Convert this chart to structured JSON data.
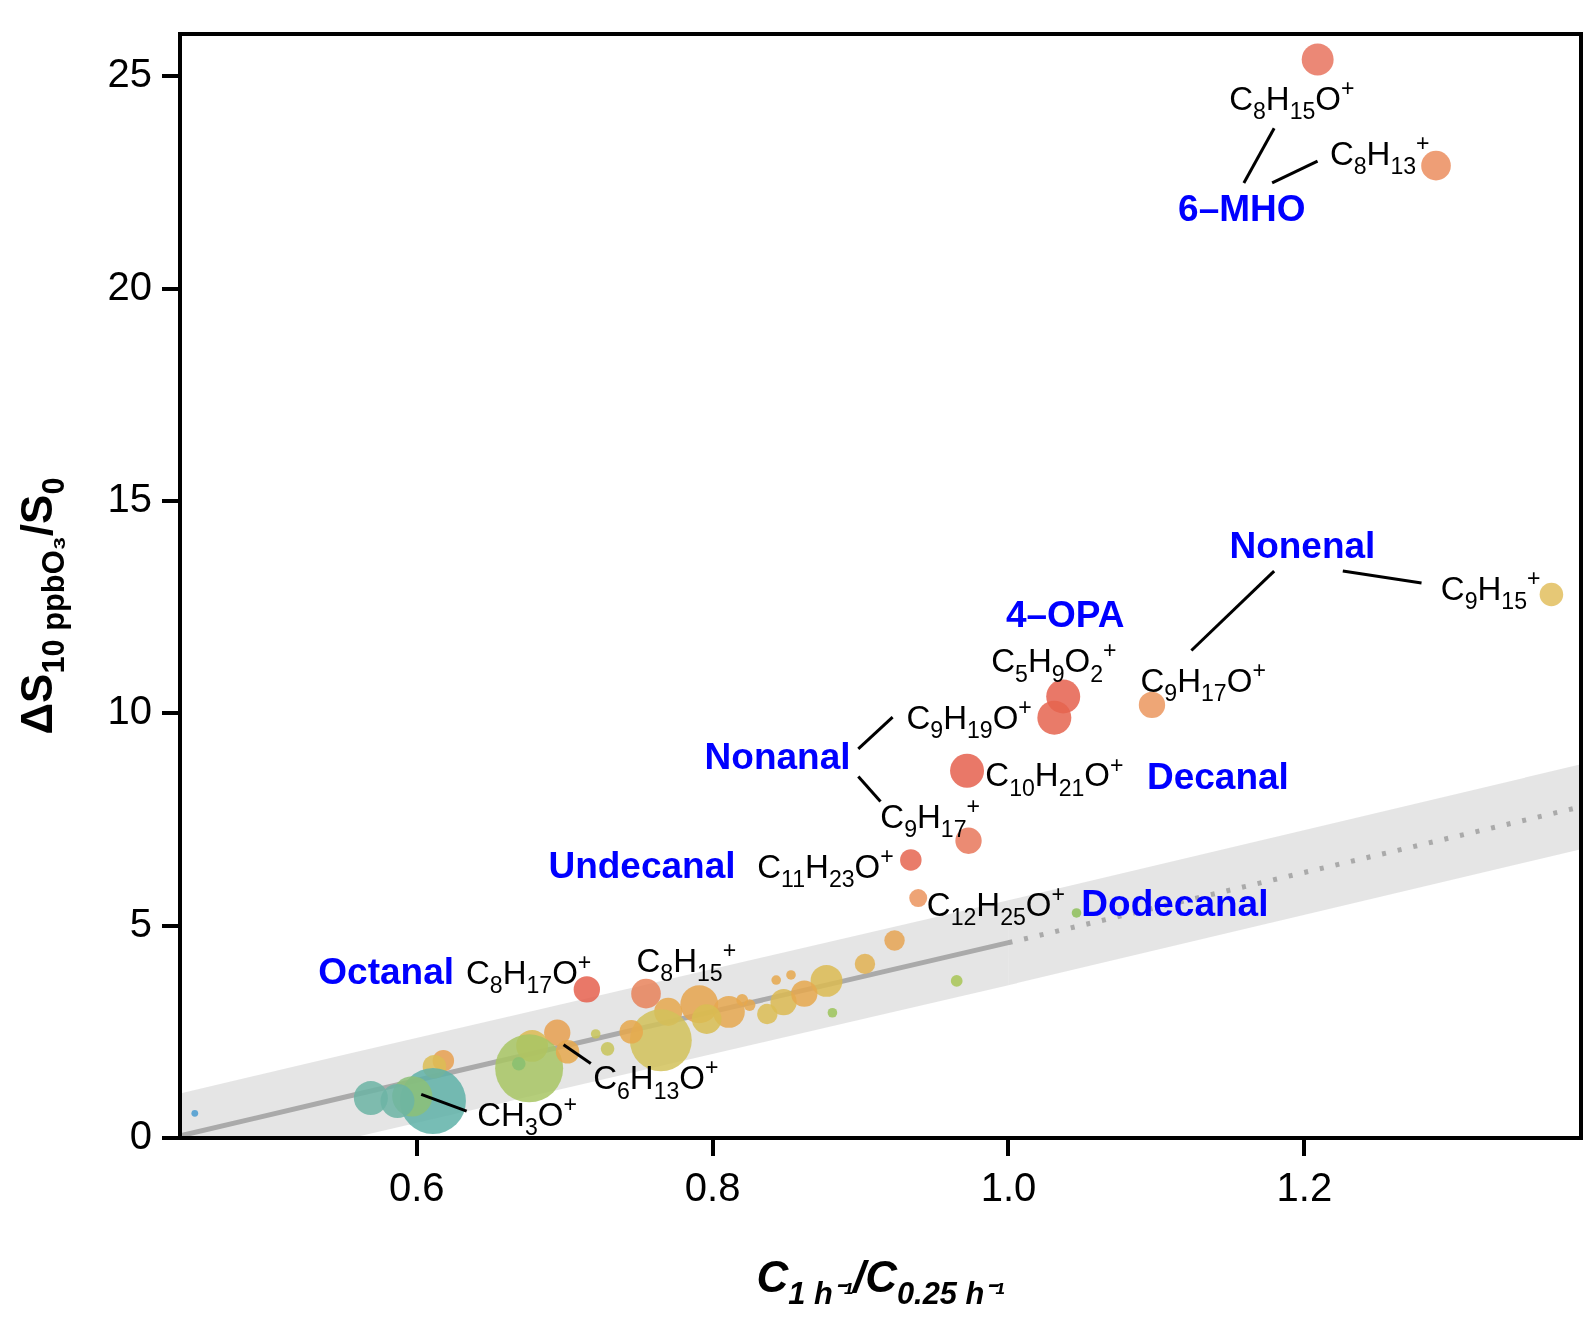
{
  "chart_data": {
    "type": "bubble",
    "xlabel": "C$_{1 h⁻¹}$/C$_{0.25 h⁻¹}$",
    "ylabel": "ΔS$_{10 ppbO₃}$/S$_{0}$",
    "xlim": [
      0.44,
      1.387
    ],
    "ylim": [
      0,
      26
    ],
    "xticks": [
      0.6,
      0.8,
      {
        "value": 1,
        "label": "1.0"
      },
      1.2
    ],
    "yticks": [
      0,
      5,
      10,
      15,
      20,
      25
    ],
    "series": [
      {
        "x": [
          1.209,
          1.289,
          1.367,
          1.097,
          1.037,
          1.031,
          0.972,
          0.973,
          0.934,
          0.939,
          1.046,
          0.715,
          0.755,
          0.923,
          0.903,
          0.877,
          0.965,
          0.881,
          0.791,
          0.811,
          0.796,
          0.77,
          0.848,
          0.837,
          0.862,
          0.853,
          0.843,
          0.765,
          0.745,
          0.695,
          0.678,
          0.676,
          0.702,
          0.729,
          0.721,
          0.618,
          0.612,
          0.669,
          0.611,
          0.597,
          0.587,
          0.569,
          0.45,
          0.825,
          0.82
        ],
        "values": [
          25.4,
          22.9,
          12.8,
          10.2,
          10.4,
          9.9,
          8.65,
          7.0,
          6.55,
          5.65,
          5.3,
          3.5,
          3.4,
          4.65,
          4.1,
          3.7,
          3.7,
          2.95,
          3.15,
          2.97,
          2.8,
          2.97,
          3.2,
          2.92,
          3.4,
          3.84,
          3.72,
          2.3,
          2.5,
          2.48,
          2.17,
          1.64,
          2.03,
          2.1,
          2.45,
          1.82,
          1.68,
          1.75,
          0.87,
          0.98,
          0.87,
          0.94,
          0.58,
          3.13,
          3.25
        ],
        "sizes": [
          0.22,
          0.19,
          0.12,
          0.15,
          0.25,
          0.25,
          0.25,
          0.15,
          0.1,
          0.07,
          0.02,
          0.15,
          0.19,
          0.09,
          0.09,
          0.22,
          0.03,
          0.02,
          0.31,
          0.22,
          0.19,
          0.17,
          0.15,
          0.09,
          0.15,
          0.02,
          0.02,
          0.83,
          0.12,
          0.15,
          0.22,
          1,
          0.12,
          0.04,
          0.02,
          0.1,
          0.12,
          0.04,
          0.94,
          0.35,
          0.25,
          0.25,
          0.01,
          0.03,
          0.03
        ],
        "colors": [
          "#e8735e",
          "#eb8d5e",
          "#e2be5e",
          "#eb965e",
          "#e5604e",
          "#e5644f",
          "#e5604e",
          "#e8775a",
          "#e56550",
          "#eb945e",
          "#8ec05a",
          "#e5604e",
          "#e8825a",
          "#e6a454",
          "#e2b252",
          "#dcbb52",
          "#a8c656",
          "#9cc45a",
          "#e6a54e",
          "#e6a850",
          "#d8bd52",
          "#e6a84e",
          "#dcba52",
          "#dcbd55",
          "#e6a84e",
          "#e6a84e",
          "#e6a84e",
          "#d2c25a",
          "#e6a84e",
          "#e8a050",
          "#dcba52",
          "#a8c664",
          "#e6a84e",
          "#c8c45a",
          "#c8c45a",
          "#e8a050",
          "#dcbd55",
          "#88c070",
          "#5fb2a8",
          "#8cc078",
          "#6cb4a4",
          "#6cb4a4",
          "#4a9bd0",
          "#e6a84e",
          "#e6a84e"
        ]
      },
      {
        "type": "line",
        "color": "#aaaaaa",
        "x": [
          0.44,
          0.556,
          1.0
        ],
        "values": [
          0.05,
          1.0,
          4.6
        ],
        "lower": [
          0,
          0,
          3.6
        ],
        "upper": [
          1.05,
          2.0,
          5.6
        ]
      },
      {
        "type": "line",
        "color": "#aaaaaa",
        "line_style": "dotted",
        "x": [
          1.0,
          1.387
        ],
        "values": [
          4.6,
          7.8
        ],
        "lower": [
          3.6,
          6.8
        ],
        "upper": [
          5.6,
          8.8
        ]
      }
    ],
    "annotations": [
      {
        "text": "C$_{8}$H$_{15}$O$^{+}$",
        "x": 1.209,
        "y": 25.4
      },
      {
        "text": "C$_{8}$H$_{13}$$^{+}$",
        "x": 1.289,
        "y": 22.9
      },
      "6–MHO",
      {
        "text": "C$_{9}$H$_{15}$$^{+}$",
        "x": 1.367,
        "y": 12.8
      },
      "Nonenal",
      {
        "text": "C$_{9}$H$_{17}$O$^{+}$",
        "x": 1.097,
        "y": 10.2
      },
      "4–OPA",
      {
        "text": "C$_{5}$H$_{9}$O$_{2}$$^{+}$",
        "x": 1.037,
        "y": 10.4
      },
      {
        "text": "C$_{9}$H$_{19}$O$^{+}$",
        "x": 1.031,
        "y": 9.9
      },
      "Nonanal",
      {
        "text": "C$_{9}$H$_{17}$$^{+}$",
        "x": 0.973,
        "y": 7.0
      },
      {
        "text": "C$_{10}$H$_{21}$O$^{+}$",
        "x": 0.972,
        "y": 8.65
      },
      "Decanal",
      {
        "text": "C$_{11}$H$_{23}$O$^{+}$",
        "x": 0.934,
        "y": 6.55
      },
      "Undecanal",
      {
        "text": "C$_{12}$H$_{25}$O$^{+}$",
        "x": 0.939,
        "y": 5.65
      },
      "Dodecanal",
      {
        "text": "C$_{8}$H$_{17}$O$^{+}$",
        "x": 0.715,
        "y": 3.5
      },
      "Octanal",
      {
        "text": "C$_{8}$H$_{15}$$^{+}$",
        "x": 0.755,
        "y": 3.4
      },
      {
        "text": "C$_{6}$H$_{13}$O$^{+}$",
        "x": 0.702,
        "y": 2.03
      },
      {
        "text": "CH$_{3}$O$^{+}$",
        "x": 0.611,
        "y": 0.87
      }
    ]
  }
}
